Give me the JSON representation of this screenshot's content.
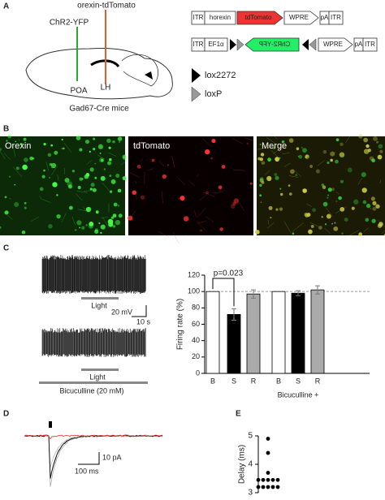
{
  "panel_labels": [
    "A",
    "B",
    "C",
    "D",
    "E"
  ],
  "panel_a": {
    "orexin_tdtomato": "orexin-tdTomato",
    "chr2": "ChR2-YFP",
    "poa": "POA",
    "lh": "LH",
    "mice": "Gad67-Cre mice",
    "construct1": [
      "ITR",
      "horexin",
      "tdTomato",
      "WPRE",
      "pA",
      "ITR"
    ],
    "construct2": [
      "ITR",
      "EF1α",
      "ChR2-YFP",
      "WPRE",
      "pA",
      "ITR"
    ],
    "legend": [
      "lox2272",
      "loxP"
    ]
  },
  "panel_b": [
    "Orexin",
    "tdTomato",
    "Merge"
  ],
  "panel_c": {
    "light1": "Light",
    "mv": "20 mV",
    "s": "10 s",
    "light2": "Light",
    "bicuculline": "Bicuculline (20 mM)"
  },
  "panel_d": {
    "pa": "10 pA",
    "ms": "100 ms"
  },
  "chart_data": [
    {
      "type": "bar",
      "ylabel": "Firing rate (%)",
      "categories": [
        "B",
        "S",
        "R",
        "B",
        "S",
        "R"
      ],
      "values": [
        100,
        72,
        97,
        100,
        98,
        102
      ],
      "errors": [
        null,
        7,
        5,
        null,
        3,
        5
      ],
      "colors": [
        "#ffffff",
        "#000000",
        "#aaaaaa",
        "#ffffff",
        "#000000",
        "#aaaaaa"
      ],
      "ylim": [
        0,
        120
      ],
      "yticks": [
        0,
        20,
        40,
        60,
        80,
        100,
        120
      ],
      "reference_line": 100,
      "annotation": "p=0.023",
      "group_label": "Bicuculline +"
    },
    {
      "type": "dot",
      "ylabel": "Delay (ms)",
      "values": [
        4.9,
        4.4,
        3.7,
        3.45,
        3.45,
        3.45,
        3.45,
        3.45,
        3.2,
        3.2,
        3.2,
        3.2,
        3.2
      ],
      "color": "#000000",
      "ylim": [
        3,
        5
      ],
      "yticks": [
        3,
        4,
        5
      ]
    }
  ]
}
